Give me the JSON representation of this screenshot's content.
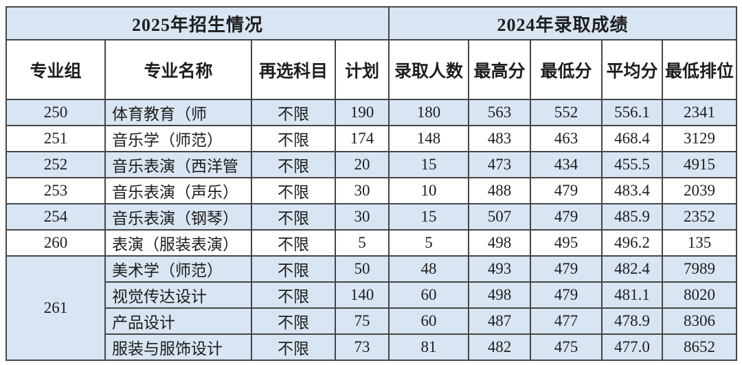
{
  "chart_data": {
    "type": "table",
    "section_headers": [
      {
        "label": "2025年招生情况",
        "span": 4
      },
      {
        "label": "2024年录取成绩",
        "span": 5
      }
    ],
    "columns": [
      "专业组",
      "专业名称",
      "再选科目",
      "计划",
      "录取人数",
      "最高分",
      "最低分",
      "平均分",
      "最低排位"
    ],
    "rows": [
      {
        "group": "250",
        "major": "体育教育（师",
        "subject": "不限",
        "plan": "190",
        "admitted": "180",
        "max_score": "563",
        "min_score": "552",
        "avg_score": "556.1",
        "min_rank": "2341"
      },
      {
        "group": "251",
        "major": "音乐学（师范）",
        "subject": "不限",
        "plan": "174",
        "admitted": "148",
        "max_score": "483",
        "min_score": "463",
        "avg_score": "468.4",
        "min_rank": "3129"
      },
      {
        "group": "252",
        "major": "音乐表演（西洋管",
        "subject": "不限",
        "plan": "20",
        "admitted": "15",
        "max_score": "473",
        "min_score": "434",
        "avg_score": "455.5",
        "min_rank": "4915"
      },
      {
        "group": "253",
        "major": "音乐表演（声乐）",
        "subject": "不限",
        "plan": "30",
        "admitted": "10",
        "max_score": "488",
        "min_score": "479",
        "avg_score": "483.4",
        "min_rank": "2039"
      },
      {
        "group": "254",
        "major": "音乐表演（钢琴）",
        "subject": "不限",
        "plan": "30",
        "admitted": "15",
        "max_score": "507",
        "min_score": "479",
        "avg_score": "485.9",
        "min_rank": "2352"
      },
      {
        "group": "260",
        "major": "表演（服装表演）",
        "subject": "不限",
        "plan": "5",
        "admitted": "5",
        "max_score": "498",
        "min_score": "495",
        "avg_score": "496.2",
        "min_rank": "135"
      },
      {
        "group": "261",
        "major": "美术学（师范）",
        "subject": "不限",
        "plan": "50",
        "admitted": "48",
        "max_score": "493",
        "min_score": "479",
        "avg_score": "482.4",
        "min_rank": "7989"
      },
      {
        "group": "261",
        "major": "视觉传达设计",
        "subject": "不限",
        "plan": "140",
        "admitted": "60",
        "max_score": "498",
        "min_score": "479",
        "avg_score": "481.1",
        "min_rank": "8020"
      },
      {
        "group": "261",
        "major": "产品设计",
        "subject": "不限",
        "plan": "75",
        "admitted": "60",
        "max_score": "487",
        "min_score": "477",
        "avg_score": "478.9",
        "min_rank": "8306"
      },
      {
        "group": "261",
        "major": "服装与服饰设计",
        "subject": "不限",
        "plan": "73",
        "admitted": "81",
        "max_score": "482",
        "min_score": "475",
        "avg_score": "477.0",
        "min_rank": "8652"
      }
    ]
  },
  "colors": {
    "row_shade": "#d8e5f2",
    "header_shade": "#d8e5f2",
    "border": "#454545",
    "text": "#1d1d1d",
    "background": "#ffffff"
  }
}
